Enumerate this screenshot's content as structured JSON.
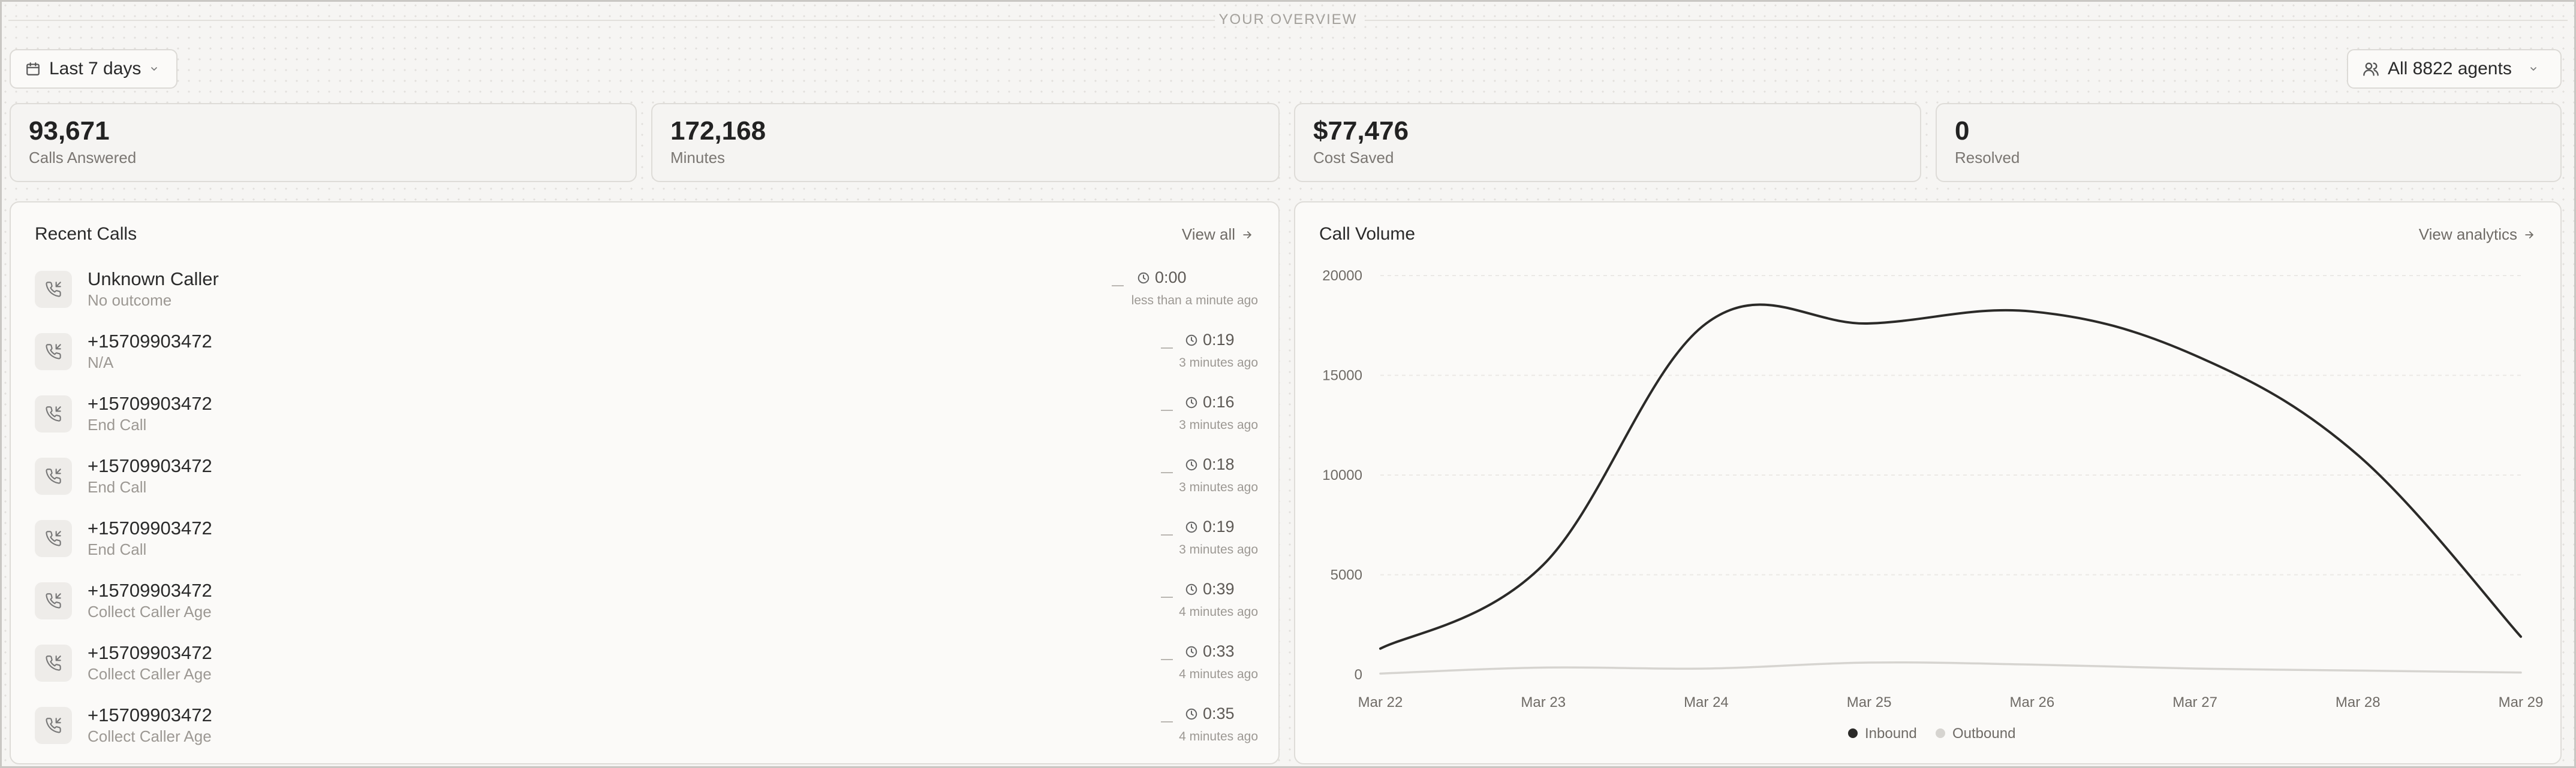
{
  "header": {
    "title": "YOUR OVERVIEW"
  },
  "filters": {
    "date_range": "Last 7 days",
    "agents": "All 8822 agents"
  },
  "stats": [
    {
      "value": "93,671",
      "label": "Calls Answered"
    },
    {
      "value": "172,168",
      "label": "Minutes"
    },
    {
      "value": "$77,476",
      "label": "Cost Saved"
    },
    {
      "value": "0",
      "label": "Resolved"
    }
  ],
  "recent_calls": {
    "title": "Recent Calls",
    "view_all": "View all",
    "rows": [
      {
        "caller": "Unknown Caller",
        "outcome": "No outcome",
        "duration": "0:00",
        "ago": "less than a minute ago"
      },
      {
        "caller": "+15709903472",
        "outcome": "N/A",
        "duration": "0:19",
        "ago": "3 minutes ago"
      },
      {
        "caller": "+15709903472",
        "outcome": "End Call",
        "duration": "0:16",
        "ago": "3 minutes ago"
      },
      {
        "caller": "+15709903472",
        "outcome": "End Call",
        "duration": "0:18",
        "ago": "3 minutes ago"
      },
      {
        "caller": "+15709903472",
        "outcome": "End Call",
        "duration": "0:19",
        "ago": "3 minutes ago"
      },
      {
        "caller": "+15709903472",
        "outcome": "Collect Caller Age",
        "duration": "0:39",
        "ago": "4 minutes ago"
      },
      {
        "caller": "+15709903472",
        "outcome": "Collect Caller Age",
        "duration": "0:33",
        "ago": "4 minutes ago"
      },
      {
        "caller": "+15709903472",
        "outcome": "Collect Caller Age",
        "duration": "0:35",
        "ago": "4 minutes ago"
      }
    ]
  },
  "call_volume": {
    "title": "Call Volume",
    "view_link": "View analytics"
  },
  "chart_data": {
    "type": "line",
    "title": "Call Volume",
    "categories": [
      "Mar 22",
      "Mar 23",
      "Mar 24",
      "Mar 25",
      "Mar 26",
      "Mar 27",
      "Mar 28",
      "Mar 29"
    ],
    "series": [
      {
        "name": "Inbound",
        "color": "#2b2a28",
        "values": [
          1300,
          5500,
          17600,
          17600,
          18200,
          16000,
          11000,
          1900
        ]
      },
      {
        "name": "Outbound",
        "color": "#d6d4d0",
        "values": [
          50,
          350,
          300,
          600,
          500,
          300,
          200,
          100
        ]
      }
    ],
    "yticks": [
      0,
      5000,
      10000,
      15000,
      20000
    ],
    "ylim": [
      0,
      20000
    ],
    "grid": true,
    "legend": "bottom-center"
  },
  "icons": {
    "calendar": "calendar-icon",
    "users": "users-icon",
    "chevron": "chevron-down-icon",
    "phone": "phone-incoming-icon",
    "clock": "clock-icon",
    "arrow": "arrow-right-icon"
  }
}
